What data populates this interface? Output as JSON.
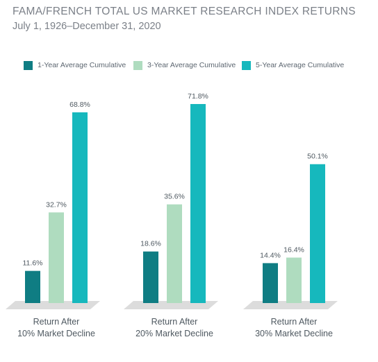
{
  "title": "FAMA/FRENCH TOTAL US MARKET RESEARCH INDEX RETURNS",
  "subtitle": "July 1, 1926–December 31, 2020",
  "colors": {
    "series": [
      "#0f7d83",
      "#afdcbf",
      "#16b8bd"
    ],
    "floor": "#dcdcdc",
    "text": "#4e5860"
  },
  "chart_data": {
    "type": "bar",
    "title": "FAMA/FRENCH TOTAL US MARKET RESEARCH INDEX RETURNS",
    "subtitle": "July 1, 1926–December 31, 2020",
    "categories": [
      [
        "Return After",
        "10% Market Decline"
      ],
      [
        "Return After",
        "20% Market Decline"
      ],
      [
        "Return After",
        "30% Market Decline"
      ]
    ],
    "series": [
      {
        "name": "1-Year Average Cumulative",
        "values": [
          11.6,
          18.6,
          14.4
        ],
        "labels": [
          "11.6%",
          "18.6%",
          "14.4%"
        ]
      },
      {
        "name": "3-Year Average Cumulative",
        "values": [
          32.7,
          35.6,
          16.4
        ],
        "labels": [
          "32.7%",
          "35.6%",
          "16.4%"
        ]
      },
      {
        "name": "5-Year Average Cumulative",
        "values": [
          68.8,
          71.8,
          50.1
        ],
        "labels": [
          "68.8%",
          "71.8%",
          "50.1%"
        ]
      }
    ],
    "ylim": [
      0,
      72
    ],
    "grid": false,
    "legend": "top-left"
  }
}
